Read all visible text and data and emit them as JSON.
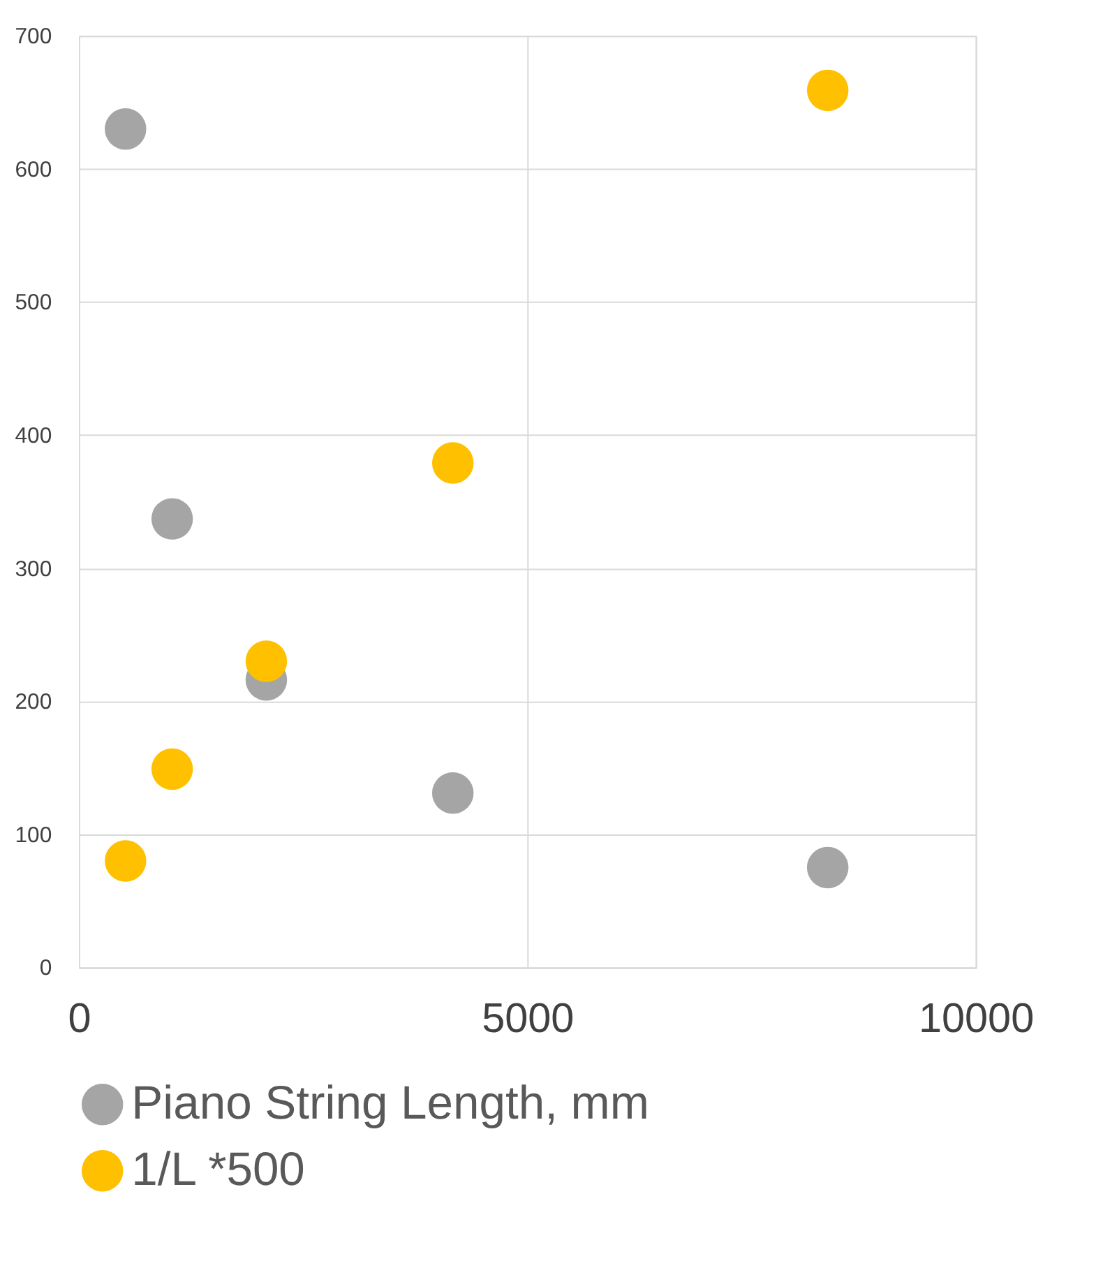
{
  "chart_data": {
    "type": "scatter",
    "xlim": [
      0,
      10000
    ],
    "xticks": [
      0,
      5000,
      10000
    ],
    "ylim": [
      0,
      700
    ],
    "yticks": [
      0,
      100,
      200,
      300,
      400,
      500,
      600,
      700
    ],
    "grid": true,
    "legend": "bottom",
    "marker": "circle",
    "series": [
      {
        "name": "Piano String Length, mm",
        "color": "#a5a5a5",
        "x": [
          520,
          1040,
          2090,
          4170,
          8350
        ],
        "values": [
          630,
          337,
          216,
          131,
          75
        ]
      },
      {
        "name": "1/L *500",
        "color": "#ffc000",
        "x": [
          520,
          1040,
          2090,
          4170,
          8350
        ],
        "values": [
          80,
          149,
          230,
          379,
          659
        ]
      }
    ]
  }
}
